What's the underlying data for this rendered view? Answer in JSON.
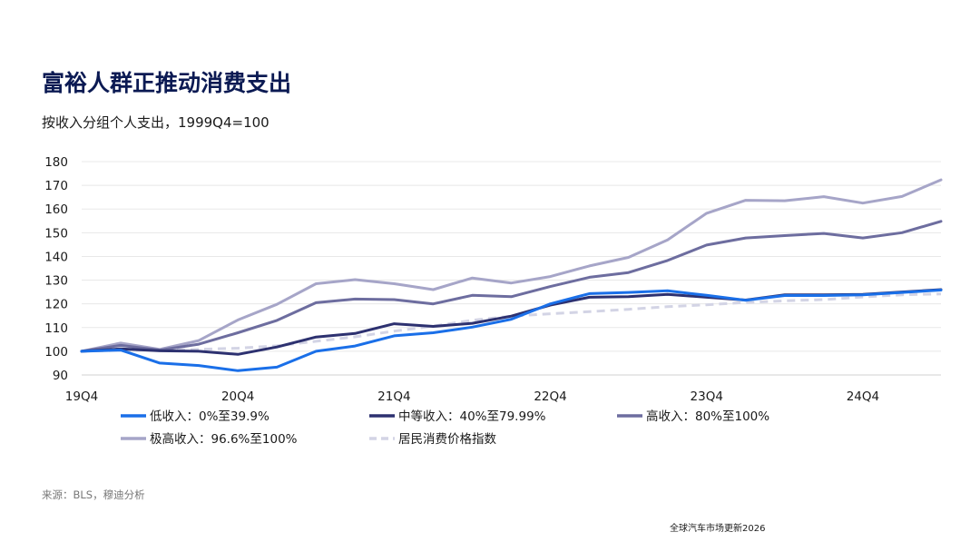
{
  "header": {
    "title": "富裕人群正推动消费支出",
    "subtitle": "按收入分组个人支出，1999Q4=100"
  },
  "footer": {
    "source": "来源：BLS，穆迪分析",
    "report": "全球汽车市场更新2026"
  },
  "chart_data": {
    "type": "line",
    "title": "富裕人群正推动消费支出",
    "subtitle": "按收入分组个人支出，1999Q4=100",
    "xlabel": "",
    "ylabel": "",
    "ylim": [
      90,
      180
    ],
    "yticks": [
      90,
      100,
      110,
      120,
      130,
      140,
      150,
      160,
      170,
      180
    ],
    "x_count": 23,
    "xtick_labels": [
      {
        "index": 0,
        "label": "19Q4"
      },
      {
        "index": 4,
        "label": "20Q4"
      },
      {
        "index": 8,
        "label": "21Q4"
      },
      {
        "index": 12,
        "label": "22Q4"
      },
      {
        "index": 16,
        "label": "23Q4"
      },
      {
        "index": 20,
        "label": "24Q4"
      }
    ],
    "grid": true,
    "legend_position": "bottom",
    "series": [
      {
        "name": "低收入：0%至39.9%",
        "color": "#1a6fe8",
        "dashed": false,
        "values": [
          100,
          100.5,
          95,
          94,
          91.8,
          93.3,
          100,
          102.2,
          106.5,
          107.8,
          110.2,
          113.5,
          120,
          124.3,
          124.8,
          125.5,
          123.6,
          121.5,
          123.5,
          123.5,
          123.8,
          124.8,
          125.8
        ]
      },
      {
        "name": "中等收入：40%至79.99%",
        "color": "#2d3170",
        "dashed": false,
        "values": [
          100,
          101,
          100.2,
          100,
          98.7,
          101.8,
          106,
          107.5,
          111.6,
          110.5,
          111.8,
          114.8,
          119.5,
          122.8,
          123,
          124,
          122.8,
          121.6,
          123.8,
          123.8,
          124,
          125,
          126
        ]
      },
      {
        "name": "高收入：80%至100%",
        "color": "#6d6d9f",
        "dashed": false,
        "values": [
          100,
          102.5,
          100.5,
          103,
          107.8,
          113,
          120.5,
          122,
          121.8,
          120,
          123.6,
          123,
          127.3,
          131.2,
          133.2,
          138.3,
          144.8,
          147.8,
          148.8,
          149.7,
          147.8,
          150,
          154.8
        ]
      },
      {
        "name": "极高收入：96.6%至100%",
        "color": "#a6a5c8",
        "dashed": false,
        "values": [
          100,
          103.5,
          100.8,
          104.5,
          113.2,
          119.8,
          128.5,
          130.2,
          128.5,
          126,
          130.9,
          128.8,
          131.5,
          136,
          139.6,
          147,
          158.2,
          163.7,
          163.5,
          165.2,
          162.5,
          165.3,
          172.3
        ]
      },
      {
        "name": "居民消费价格指数",
        "color": "#d3d4e5",
        "dashed": true,
        "values": [
          100,
          100.4,
          100.5,
          100.8,
          101.3,
          102.3,
          104.2,
          106.1,
          108.5,
          110.6,
          113.1,
          114.8,
          115.8,
          116.7,
          117.7,
          118.8,
          119.6,
          120.6,
          121.3,
          121.8,
          122.9,
          123.8,
          124.2
        ]
      }
    ]
  }
}
